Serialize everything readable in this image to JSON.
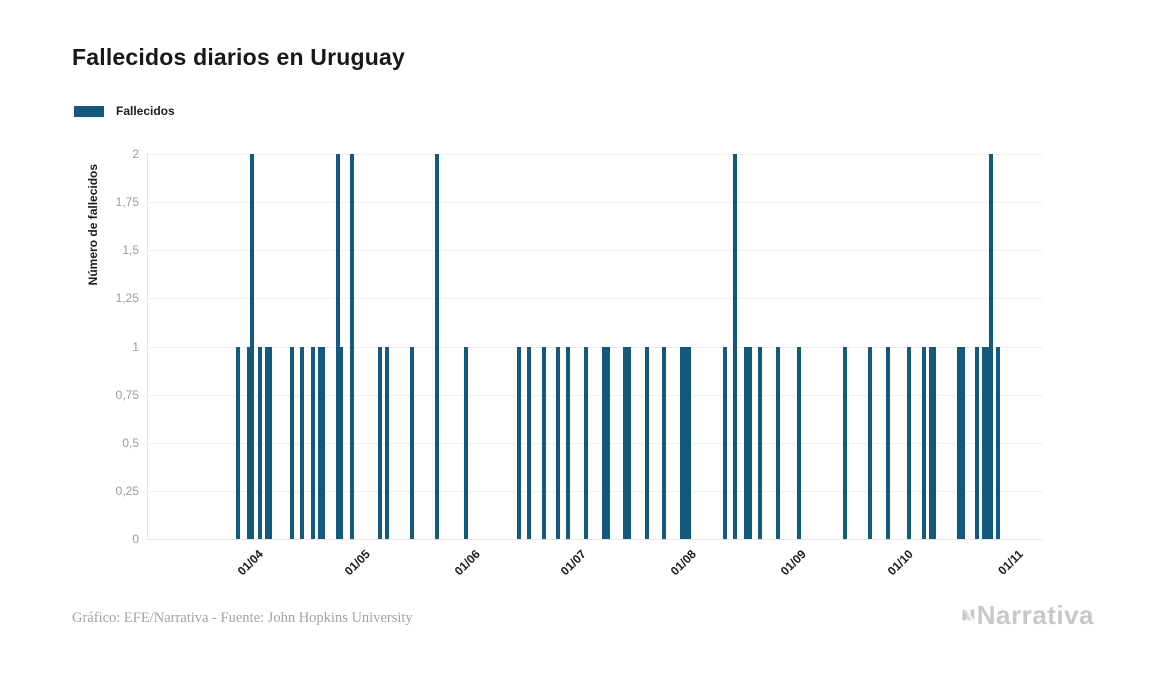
{
  "title": "Fallecidos diarios en Uruguay",
  "legend": {
    "label": "Fallecidos"
  },
  "y_axis": {
    "title": "Número de fallecidos",
    "tick_labels": [
      "0",
      "0,25",
      "0,5",
      "0,75",
      "1",
      "1,25",
      "1,5",
      "1,75",
      "2"
    ],
    "tick_values": [
      0,
      0.25,
      0.5,
      0.75,
      1,
      1.25,
      1.5,
      1.75,
      2
    ]
  },
  "x_axis": {
    "ticks": [
      {
        "label": "01/04",
        "date": "2020-04-01"
      },
      {
        "label": "01/05",
        "date": "2020-05-01"
      },
      {
        "label": "01/06",
        "date": "2020-06-01"
      },
      {
        "label": "01/07",
        "date": "2020-07-01"
      },
      {
        "label": "01/08",
        "date": "2020-08-01"
      },
      {
        "label": "01/09",
        "date": "2020-09-01"
      },
      {
        "label": "01/10",
        "date": "2020-10-01"
      },
      {
        "label": "01/11",
        "date": "2020-11-01"
      }
    ]
  },
  "footer": {
    "credit": "Gráfico: EFE/Narrativa - Fuente: John Hopkins University"
  },
  "branding": {
    "logo_text": "Narrativa",
    "logo_icon": "narrativa-n-mark"
  },
  "colors": {
    "bar": "#14587e",
    "grid": "#f0f0f0",
    "axis_line": "#e6e6e6",
    "tick_text": "#9b9b9b",
    "dark_text": "#1c1c1f",
    "footer_text": "#a2a2a2",
    "logo_gray": "#c8c8c8",
    "logo_gray_light": "#dcdcdc"
  },
  "chart_data": {
    "type": "bar",
    "title": "Fallecidos diarios en Uruguay",
    "xlabel": "",
    "ylabel": "Número de fallecidos",
    "ylim": [
      0,
      2
    ],
    "grid": true,
    "legend_position": "top-left",
    "x_tick_format": "DD/MM",
    "series": [
      {
        "name": "Fallecidos",
        "points": [
          {
            "date": "2020-03-27",
            "value": 1
          },
          {
            "date": "2020-03-30",
            "value": 1
          },
          {
            "date": "2020-03-31",
            "value": 2
          },
          {
            "date": "2020-04-02",
            "value": 1
          },
          {
            "date": "2020-04-04",
            "value": 1
          },
          {
            "date": "2020-04-05",
            "value": 1
          },
          {
            "date": "2020-04-11",
            "value": 1
          },
          {
            "date": "2020-04-14",
            "value": 1
          },
          {
            "date": "2020-04-17",
            "value": 1
          },
          {
            "date": "2020-04-19",
            "value": 1
          },
          {
            "date": "2020-04-20",
            "value": 1
          },
          {
            "date": "2020-04-24",
            "value": 2
          },
          {
            "date": "2020-04-25",
            "value": 1
          },
          {
            "date": "2020-04-28",
            "value": 2
          },
          {
            "date": "2020-05-06",
            "value": 1
          },
          {
            "date": "2020-05-08",
            "value": 1
          },
          {
            "date": "2020-05-15",
            "value": 1
          },
          {
            "date": "2020-05-22",
            "value": 2
          },
          {
            "date": "2020-05-30",
            "value": 1
          },
          {
            "date": "2020-06-14",
            "value": 1
          },
          {
            "date": "2020-06-17",
            "value": 1
          },
          {
            "date": "2020-06-21",
            "value": 1
          },
          {
            "date": "2020-06-25",
            "value": 1
          },
          {
            "date": "2020-06-28",
            "value": 1
          },
          {
            "date": "2020-07-03",
            "value": 1
          },
          {
            "date": "2020-07-08",
            "value": 1
          },
          {
            "date": "2020-07-09",
            "value": 1
          },
          {
            "date": "2020-07-14",
            "value": 1
          },
          {
            "date": "2020-07-15",
            "value": 1
          },
          {
            "date": "2020-07-20",
            "value": 1
          },
          {
            "date": "2020-07-25",
            "value": 1
          },
          {
            "date": "2020-07-30",
            "value": 1
          },
          {
            "date": "2020-07-31",
            "value": 1
          },
          {
            "date": "2020-08-01",
            "value": 1
          },
          {
            "date": "2020-08-11",
            "value": 1
          },
          {
            "date": "2020-08-14",
            "value": 2
          },
          {
            "date": "2020-08-17",
            "value": 1
          },
          {
            "date": "2020-08-18",
            "value": 1
          },
          {
            "date": "2020-08-21",
            "value": 1
          },
          {
            "date": "2020-08-26",
            "value": 1
          },
          {
            "date": "2020-09-01",
            "value": 1
          },
          {
            "date": "2020-09-14",
            "value": 1
          },
          {
            "date": "2020-09-21",
            "value": 1
          },
          {
            "date": "2020-09-26",
            "value": 1
          },
          {
            "date": "2020-10-02",
            "value": 1
          },
          {
            "date": "2020-10-06",
            "value": 1
          },
          {
            "date": "2020-10-08",
            "value": 1
          },
          {
            "date": "2020-10-09",
            "value": 1
          },
          {
            "date": "2020-10-16",
            "value": 1
          },
          {
            "date": "2020-10-17",
            "value": 1
          },
          {
            "date": "2020-10-21",
            "value": 1
          },
          {
            "date": "2020-10-23",
            "value": 1
          },
          {
            "date": "2020-10-24",
            "value": 1
          },
          {
            "date": "2020-10-25",
            "value": 2
          },
          {
            "date": "2020-10-27",
            "value": 1
          }
        ]
      }
    ]
  }
}
